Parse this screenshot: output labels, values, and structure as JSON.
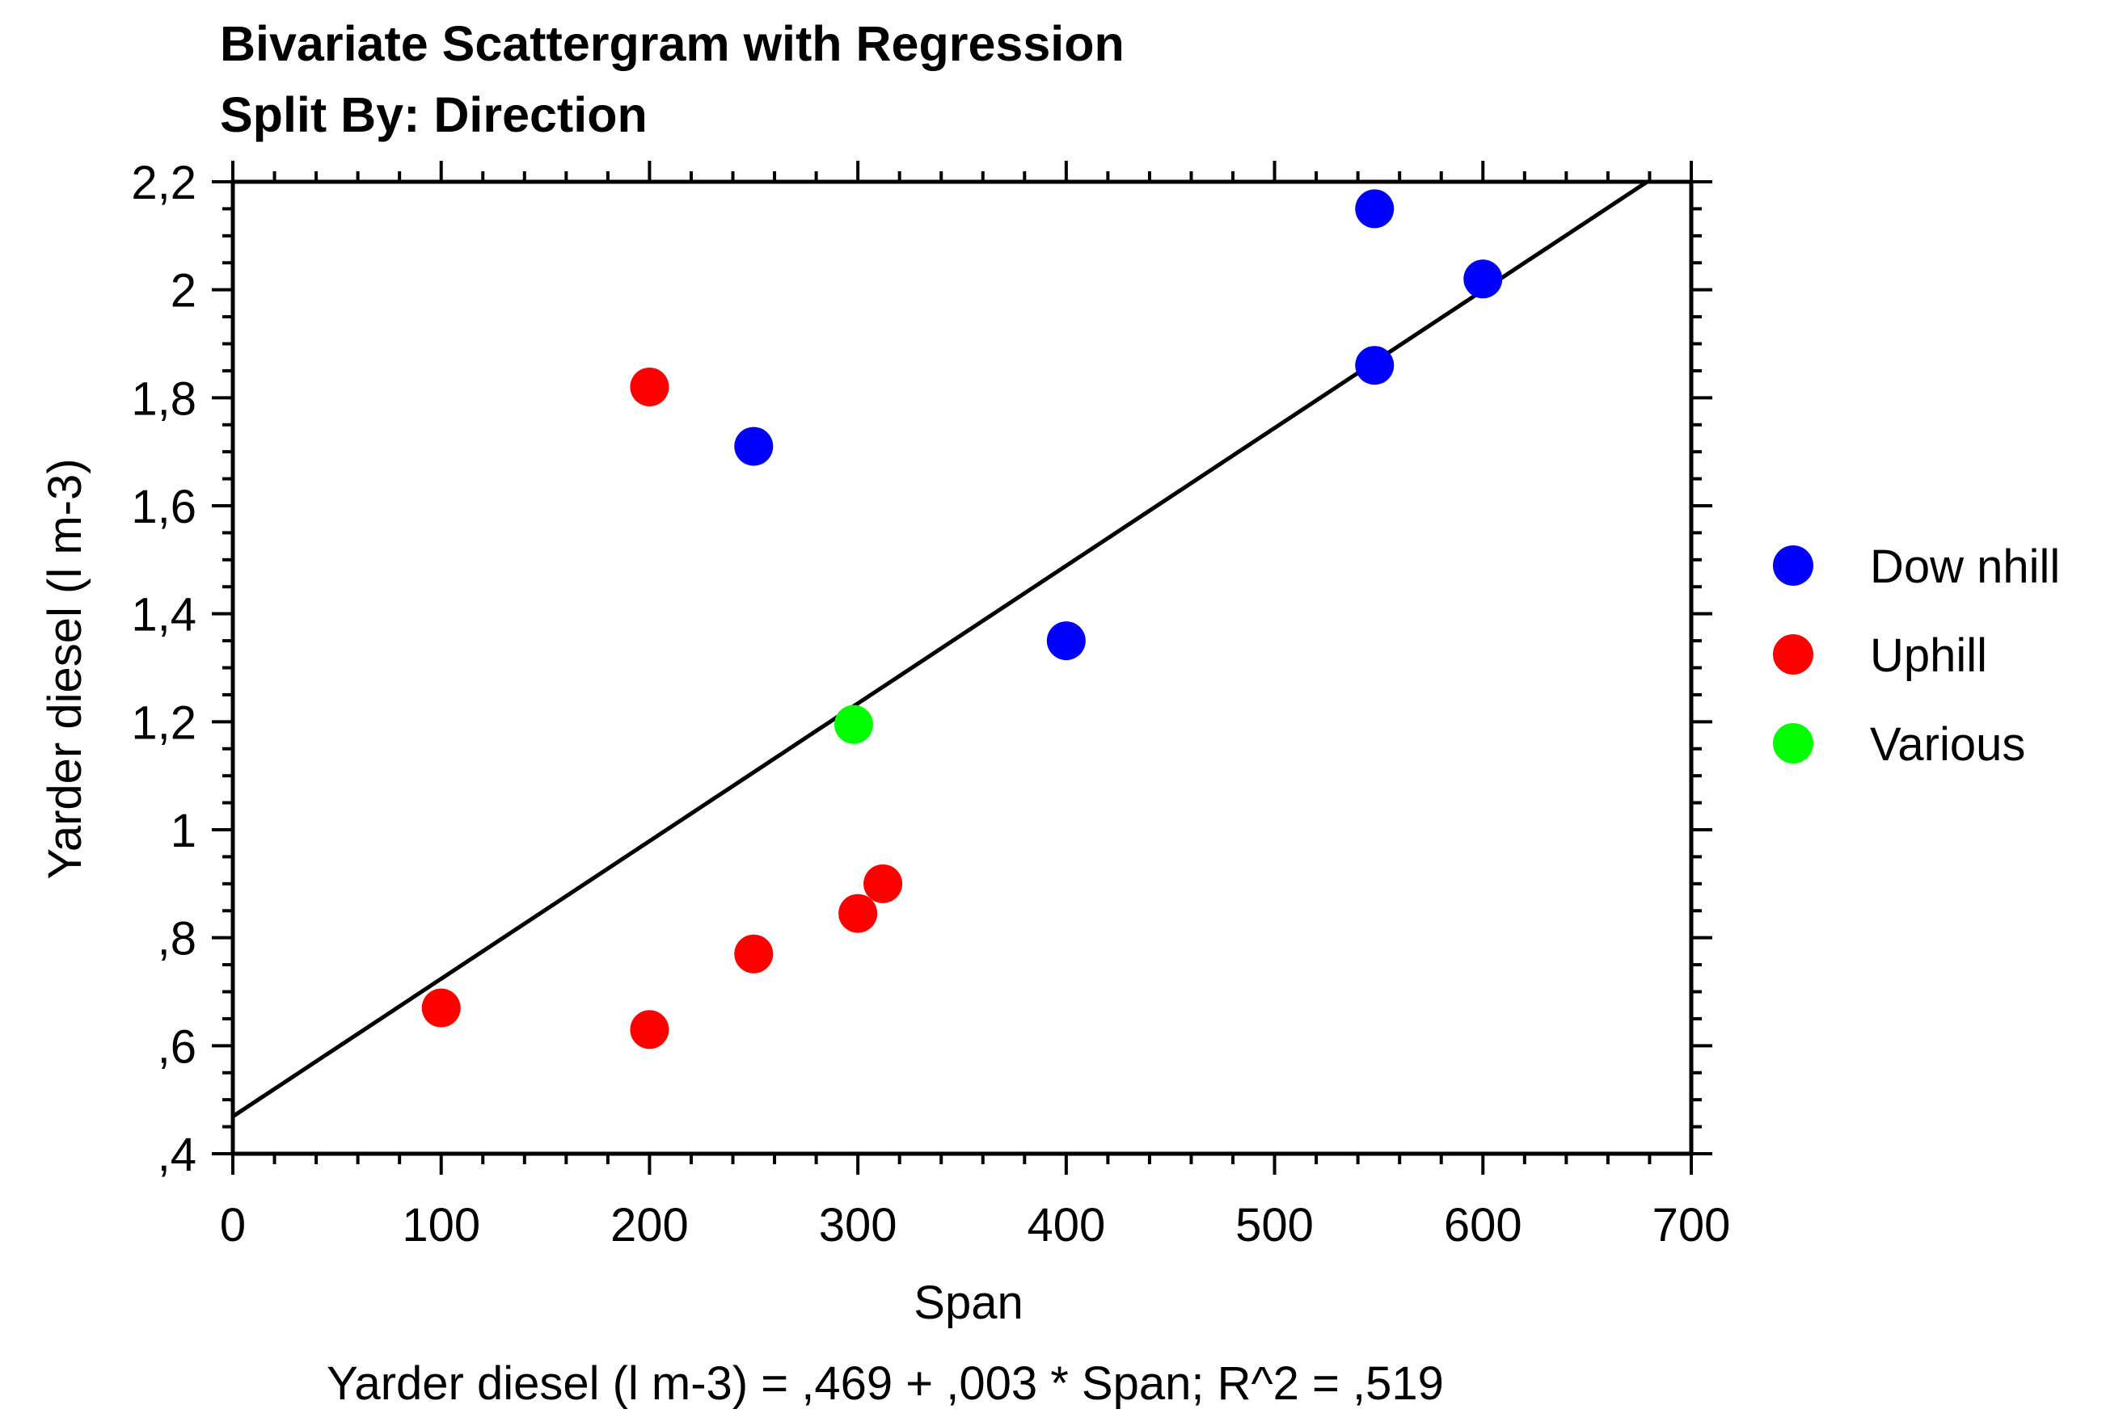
{
  "chart_data": {
    "type": "scatter",
    "title": "Bivariate Scattergram with Regression",
    "subtitle": "Split By: Direction",
    "xlabel": "Span",
    "ylabel": "Yarder diesel (l m-3)",
    "xlim": [
      0,
      700
    ],
    "ylim": [
      0.4,
      2.2
    ],
    "x_ticks": [
      0,
      100,
      200,
      300,
      400,
      500,
      600,
      700
    ],
    "x_tick_labels": [
      "0",
      "100",
      "200",
      "300",
      "400",
      "500",
      "600",
      "700"
    ],
    "y_ticks": [
      0.4,
      0.6,
      0.8,
      1.0,
      1.2,
      1.4,
      1.6,
      1.8,
      2.0,
      2.2
    ],
    "y_tick_labels": [
      ",4",
      ",6",
      ",8",
      "1",
      "1,2",
      "1,4",
      "1,6",
      "1,8",
      "2",
      "2,2"
    ],
    "legend_position": "right",
    "series": [
      {
        "name": "Dow nhill",
        "color": "#0000ff",
        "points": [
          [
            250,
            1.71
          ],
          [
            400,
            1.35
          ],
          [
            548,
            2.15
          ],
          [
            548,
            1.86
          ],
          [
            600,
            2.02
          ]
        ]
      },
      {
        "name": "Uphill",
        "color": "#ff0000",
        "points": [
          [
            100,
            0.67
          ],
          [
            200,
            1.82
          ],
          [
            200,
            0.63
          ],
          [
            250,
            0.77
          ],
          [
            300,
            0.845
          ],
          [
            312,
            0.9
          ]
        ]
      },
      {
        "name": "Various",
        "color": "#00ff00",
        "points": [
          [
            298,
            1.195
          ]
        ]
      }
    ],
    "regression": {
      "intercept": 0.469,
      "slope": 0.00255,
      "color": "#000000",
      "equation_text": "Yarder diesel (l m-3) = ,469 + ,003 * Span; R^2 = ,519"
    }
  }
}
